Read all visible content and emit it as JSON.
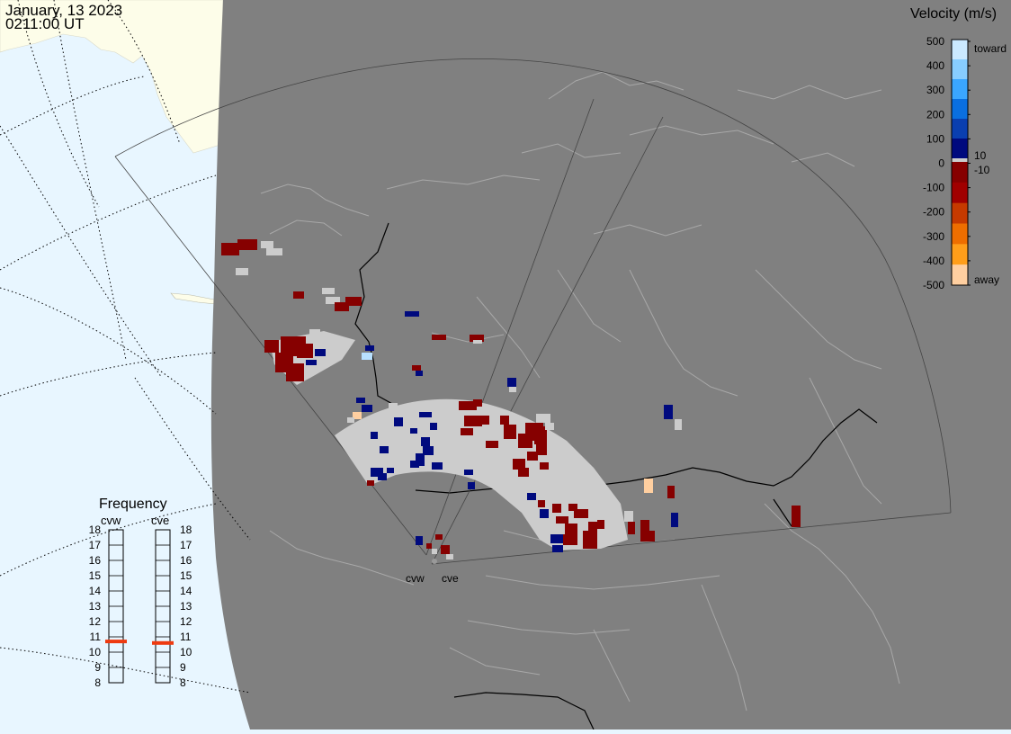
{
  "header": {
    "date": "January, 13 2023",
    "time": "0211:00 UT"
  },
  "legend": {
    "title": "Velocity (m/s)",
    "tick_labels": [
      "500",
      "400",
      "300",
      "200",
      "100",
      "0",
      "-100",
      "-200",
      "-300",
      "-400",
      "-500"
    ],
    "toward_label": "toward",
    "away_label": "away",
    "threshold_pos": "10",
    "threshold_neg": "-10",
    "colors": {
      "toward": [
        "#cbe9ff",
        "#87cdff",
        "#3aa6ff",
        "#0a6fe0",
        "#0a3fb0",
        "#000a7e"
      ],
      "ground": "#cccccc",
      "away": [
        "#860000",
        "#a00000",
        "#c63a00",
        "#ee6e00",
        "#ff9e1a",
        "#ffcfa0"
      ]
    }
  },
  "frequency": {
    "title": "Frequency",
    "radars": [
      {
        "name": "cvw",
        "value_mhz": 10.7
      },
      {
        "name": "cve",
        "value_mhz": 10.6
      }
    ],
    "scale_labels": [
      "18",
      "17",
      "16",
      "15",
      "14",
      "13",
      "12",
      "11",
      "10",
      "9",
      "8"
    ]
  },
  "radar_sites": [
    {
      "name": "cvw"
    },
    {
      "name": "cve"
    }
  ],
  "colors": {
    "map_background": "#808080",
    "ocean": "#e8f6ff",
    "land_outside": "#fdfde9",
    "ground_scatter": "#cccccc",
    "frequency_marker": "#ee3a10"
  }
}
